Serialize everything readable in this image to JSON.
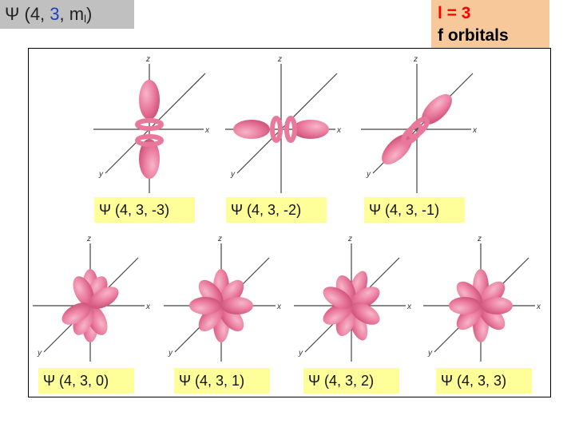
{
  "header": {
    "title_prefix": "Ψ (4, ",
    "title_l": "3",
    "title_sep": ", m",
    "title_sub": "l",
    "title_suffix": ")",
    "tag_line1": "l = 3",
    "tag_line2": "f orbitals"
  },
  "axes": {
    "x": "x",
    "y": "y",
    "z": "z"
  },
  "orbitals": [
    {
      "label": "Ψ (4, 3, -3)"
    },
    {
      "label": "Ψ (4, 3, -2)"
    },
    {
      "label": "Ψ (4, 3, -1)"
    },
    {
      "label": "Ψ (4, 3, 0)"
    },
    {
      "label": "Ψ (4, 3, 1)"
    },
    {
      "label": "Ψ (4, 3, 2)"
    },
    {
      "label": "Ψ (4, 3, 3)"
    }
  ],
  "colors": {
    "lobe": "#e9789b",
    "lobe_light": "#f7b6c9",
    "lobe_dark": "#c94d74",
    "label_bg": "#ffff99",
    "tag_bg": "#f7c99a"
  }
}
